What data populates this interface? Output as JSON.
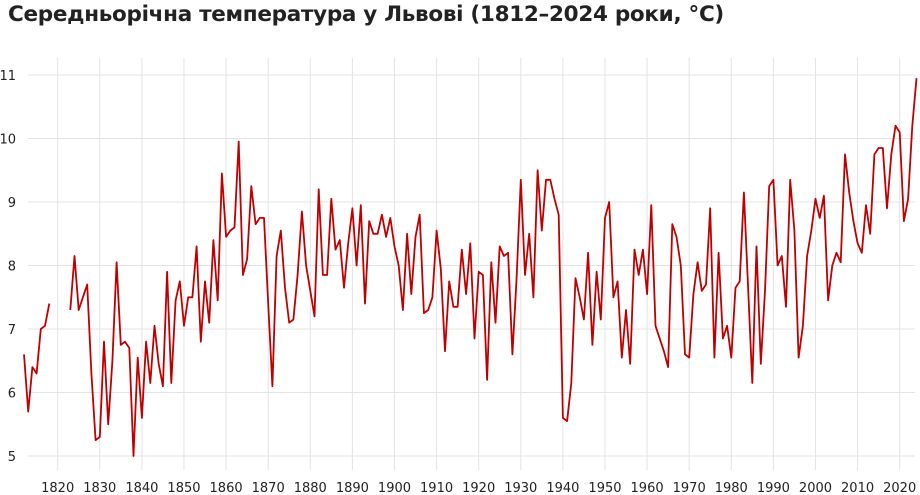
{
  "chart_data": {
    "type": "line",
    "title": "Середньорічна температура у Львові (1812–2024 роки, °C)",
    "xlabel": "",
    "ylabel": "",
    "xlim": [
      1812,
      2024
    ],
    "ylim": [
      5,
      11
    ],
    "xticks": [
      1820,
      1830,
      1840,
      1850,
      1860,
      1870,
      1880,
      1890,
      1900,
      1910,
      1920,
      1930,
      1940,
      1950,
      1960,
      1970,
      1980,
      1990,
      2000,
      2010,
      2020
    ],
    "yticks": [
      5,
      6,
      7,
      8,
      9,
      10,
      11
    ],
    "grid": "vertical and horizontal",
    "line_color": "#c00000",
    "series": [
      {
        "x": [
          1812,
          1813,
          1814,
          1815,
          1816,
          1817,
          1818,
          1819,
          1820,
          1821,
          1822,
          1823,
          1824,
          1825,
          1826,
          1827,
          1828,
          1829,
          1830,
          1831,
          1832,
          1833,
          1834,
          1835,
          1836,
          1837,
          1838,
          1839,
          1840,
          1841,
          1842,
          1843,
          1844,
          1845,
          1846,
          1847,
          1848,
          1849,
          1850,
          1851,
          1852,
          1853,
          1854,
          1855,
          1856,
          1857,
          1858,
          1859,
          1860,
          1861,
          1862,
          1863,
          1864,
          1865,
          1866,
          1867,
          1868,
          1869,
          1870,
          1871,
          1872,
          1873,
          1874,
          1875,
          1876,
          1877,
          1878,
          1879,
          1880,
          1881,
          1882,
          1883,
          1884,
          1885,
          1886,
          1887,
          1888,
          1889,
          1890,
          1891,
          1892,
          1893,
          1894,
          1895,
          1896,
          1897,
          1898,
          1899,
          1900,
          1901,
          1902,
          1903,
          1904,
          1905,
          1906,
          1907,
          1908,
          1909,
          1910,
          1911,
          1912,
          1913,
          1914,
          1915,
          1916,
          1917,
          1918,
          1919,
          1920,
          1921,
          1922,
          1923,
          1924,
          1925,
          1926,
          1927,
          1928,
          1929,
          1930,
          1931,
          1932,
          1933,
          1934,
          1935,
          1936,
          1937,
          1938,
          1939,
          1940,
          1941,
          1942,
          1943,
          1944,
          1945,
          1946,
          1947,
          1948,
          1949,
          1950,
          1951,
          1952,
          1953,
          1954,
          1955,
          1956,
          1957,
          1958,
          1959,
          1960,
          1961,
          1962,
          1963,
          1964,
          1965,
          1966,
          1967,
          1968,
          1969,
          1970,
          1971,
          1972,
          1973,
          1974,
          1975,
          1976,
          1977,
          1978,
          1979,
          1980,
          1981,
          1982,
          1983,
          1984,
          1985,
          1986,
          1987,
          1988,
          1989,
          1990,
          1991,
          1992,
          1993,
          1994,
          1995,
          1996,
          1997,
          1998,
          1999,
          2000,
          2001,
          2002,
          2003,
          2004,
          2005,
          2006,
          2007,
          2008,
          2009,
          2010,
          2011,
          2012,
          2013,
          2014,
          2015,
          2016,
          2017,
          2018,
          2019,
          2020,
          2021,
          2022,
          2023,
          2024
        ],
        "y": [
          6.6,
          5.7,
          6.4,
          6.3,
          7.0,
          7.05,
          7.4,
          null,
          null,
          null,
          null,
          7.3,
          8.15,
          7.3,
          7.5,
          7.7,
          6.3,
          5.25,
          5.3,
          6.8,
          5.5,
          6.5,
          8.05,
          6.75,
          6.8,
          6.7,
          5.0,
          6.55,
          5.6,
          6.8,
          6.15,
          7.05,
          6.45,
          6.1,
          7.9,
          6.15,
          7.45,
          7.75,
          7.05,
          7.5,
          7.5,
          8.3,
          6.8,
          7.75,
          7.1,
          8.4,
          7.45,
          9.45,
          8.45,
          8.55,
          8.6,
          9.95,
          7.85,
          8.1,
          9.25,
          8.65,
          8.75,
          8.75,
          7.4,
          6.1,
          8.15,
          8.55,
          7.65,
          7.1,
          7.15,
          7.85,
          8.85,
          8.0,
          7.6,
          7.2,
          9.2,
          7.85,
          7.85,
          9.05,
          8.25,
          8.4,
          7.65,
          8.35,
          8.9,
          8.0,
          8.95,
          7.4,
          8.7,
          8.5,
          8.5,
          8.8,
          8.45,
          8.75,
          8.3,
          8.0,
          7.3,
          8.5,
          7.55,
          8.45,
          8.8,
          7.25,
          7.3,
          7.5,
          8.55,
          7.95,
          6.65,
          7.75,
          7.35,
          7.35,
          8.25,
          7.55,
          8.35,
          6.85,
          7.9,
          7.85,
          6.2,
          8.05,
          7.1,
          8.3,
          8.15,
          8.2,
          6.6,
          7.8,
          9.35,
          7.85,
          8.5,
          7.5,
          9.5,
          8.55,
          9.35,
          9.35,
          9.05,
          8.8,
          5.6,
          5.55,
          6.15,
          7.8,
          7.5,
          7.15,
          8.2,
          6.75,
          7.9,
          7.15,
          8.75,
          9.0,
          7.5,
          7.75,
          6.55,
          7.3,
          6.45,
          8.25,
          7.85,
          8.25,
          7.55,
          8.95,
          7.05,
          6.85,
          6.65,
          6.4,
          8.65,
          8.45,
          8.0,
          6.6,
          6.55,
          7.55,
          8.05,
          7.6,
          7.7,
          8.9,
          6.55,
          8.2,
          6.85,
          7.05,
          6.55,
          7.65,
          7.75,
          9.15,
          7.65,
          6.15,
          8.3,
          6.45,
          7.6,
          9.25,
          9.35,
          8.0,
          8.15,
          7.35,
          9.35,
          8.55,
          6.55,
          7.05,
          8.15,
          8.55,
          9.05,
          8.75,
          9.1,
          7.45,
          8.0,
          8.2,
          8.05,
          9.75,
          9.15,
          8.7,
          8.35,
          8.2,
          8.95,
          8.5,
          9.75,
          9.85,
          9.85,
          8.9,
          9.75,
          10.2,
          10.1,
          8.7,
          9.05,
          10.2,
          10.95
        ]
      }
    ]
  }
}
